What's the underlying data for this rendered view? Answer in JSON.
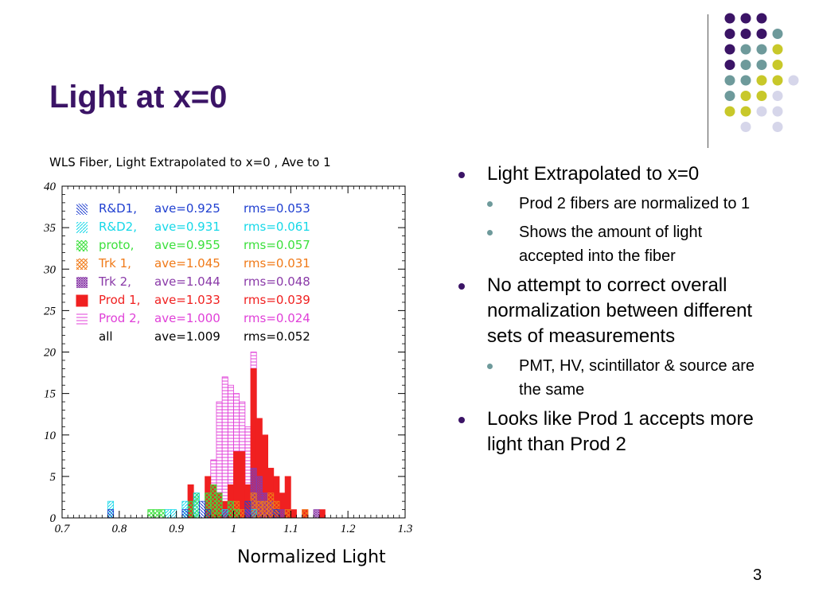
{
  "slide": {
    "title": "Light at x=0",
    "page_number": "3",
    "colors": {
      "title": "#3b1466",
      "dot_purple": "#3b1466",
      "dot_teal": "#6e9a9b",
      "dot_yellow": "#c8c82a",
      "dot_lavender": "#d6d6ea"
    }
  },
  "bullets": [
    {
      "text": "Light Extrapolated to x=0",
      "children": [
        "Prod 2 fibers are normalized to 1",
        "Shows the amount of light accepted into the fiber"
      ]
    },
    {
      "text": "No attempt to correct overall normalization between different sets of measurements",
      "children": [
        "PMT, HV, scintillator & source are the same"
      ]
    },
    {
      "text": "Looks like Prod 1 accepts more light than Prod 2",
      "children": []
    }
  ],
  "chart_data": {
    "type": "bar",
    "title": "WLS Fiber, Light Extrapolated to x=0     , Ave to 1",
    "xlabel": "Normalized Light",
    "ylabel": "",
    "xlim": [
      0.7,
      1.3
    ],
    "ylim": [
      0,
      40
    ],
    "xticks": [
      "0.7",
      "0.8",
      "0.9",
      "1",
      "1.1",
      "1.2",
      "1.3"
    ],
    "yticks": [
      "0",
      "5",
      "10",
      "15",
      "20",
      "25",
      "30",
      "35",
      "40"
    ],
    "bin_width": 0.01,
    "series": [
      {
        "name": "R&D1,",
        "ave": "ave=0.925",
        "rms": "rms=0.053",
        "color": "#1f3fd0",
        "pattern": "diag-back",
        "bins": [
          [
            0.78,
            1
          ],
          [
            0.91,
            1
          ],
          [
            0.94,
            2
          ],
          [
            0.95,
            1
          ],
          [
            1.02,
            2
          ],
          [
            1.07,
            1
          ]
        ]
      },
      {
        "name": "R&D2,",
        "ave": "ave=0.931",
        "rms": "rms=0.061",
        "color": "#16d8e8",
        "pattern": "diag-fwd",
        "bins": [
          [
            0.78,
            2
          ],
          [
            0.88,
            1
          ],
          [
            0.89,
            1
          ],
          [
            0.91,
            2
          ],
          [
            0.93,
            3
          ],
          [
            0.98,
            1
          ],
          [
            1.03,
            1
          ]
        ]
      },
      {
        "name": "proto,",
        "ave": "ave=0.955",
        "rms": "rms=0.057",
        "color": "#3ce03c",
        "pattern": "cross",
        "bins": [
          [
            0.85,
            1
          ],
          [
            0.86,
            1
          ],
          [
            0.87,
            1
          ],
          [
            0.92,
            2
          ],
          [
            0.93,
            3
          ],
          [
            0.95,
            3
          ],
          [
            0.96,
            4
          ],
          [
            0.97,
            3
          ],
          [
            0.99,
            2
          ],
          [
            1.0,
            1
          ]
        ]
      },
      {
        "name": "Trk 1,",
        "ave": "ave=1.045",
        "rms": "rms=0.031",
        "color": "#f07a18",
        "pattern": "cross",
        "bins": [
          [
            1.0,
            2
          ],
          [
            1.01,
            1
          ],
          [
            1.03,
            3
          ],
          [
            1.04,
            2
          ],
          [
            1.05,
            2
          ],
          [
            1.06,
            3
          ],
          [
            1.07,
            2
          ],
          [
            1.09,
            1
          ],
          [
            1.12,
            1
          ]
        ]
      },
      {
        "name": "Trk 2,",
        "ave": "ave=1.044",
        "rms": "rms=0.048",
        "color": "#8a3aa8",
        "pattern": "grid",
        "bins": [
          [
            0.98,
            1
          ],
          [
            1.02,
            1
          ],
          [
            1.03,
            6
          ],
          [
            1.04,
            5
          ],
          [
            1.05,
            3
          ],
          [
            1.06,
            2
          ],
          [
            1.08,
            1
          ],
          [
            1.14,
            1
          ]
        ]
      },
      {
        "name": "Prod 1,",
        "ave": "ave=1.033",
        "rms": "rms=0.039",
        "color": "#f02020",
        "pattern": "solid",
        "bins": [
          [
            0.92,
            4
          ],
          [
            0.95,
            5
          ],
          [
            0.96,
            4
          ],
          [
            0.97,
            3
          ],
          [
            0.98,
            2
          ],
          [
            0.99,
            4
          ],
          [
            1.0,
            8
          ],
          [
            1.01,
            8
          ],
          [
            1.02,
            4
          ],
          [
            1.03,
            18
          ],
          [
            1.04,
            12
          ],
          [
            1.05,
            10
          ],
          [
            1.06,
            6
          ],
          [
            1.07,
            5
          ],
          [
            1.08,
            3
          ],
          [
            1.09,
            5
          ],
          [
            1.1,
            1
          ],
          [
            1.12,
            1
          ],
          [
            1.15,
            1
          ]
        ]
      },
      {
        "name": "Prod 2,",
        "ave": "ave=1.000",
        "rms": "rms=0.024",
        "color": "#e040d8",
        "pattern": "horiz",
        "bins": [
          [
            0.95,
            3
          ],
          [
            0.96,
            7
          ],
          [
            0.97,
            14
          ],
          [
            0.98,
            17
          ],
          [
            0.99,
            16
          ],
          [
            1.0,
            15
          ],
          [
            1.01,
            14
          ],
          [
            1.02,
            11
          ],
          [
            1.03,
            20
          ],
          [
            1.04,
            5
          ]
        ]
      },
      {
        "name": "all",
        "ave": "ave=1.009",
        "rms": "rms=0.052",
        "color": "#000000",
        "pattern": "none",
        "bins": []
      }
    ]
  }
}
